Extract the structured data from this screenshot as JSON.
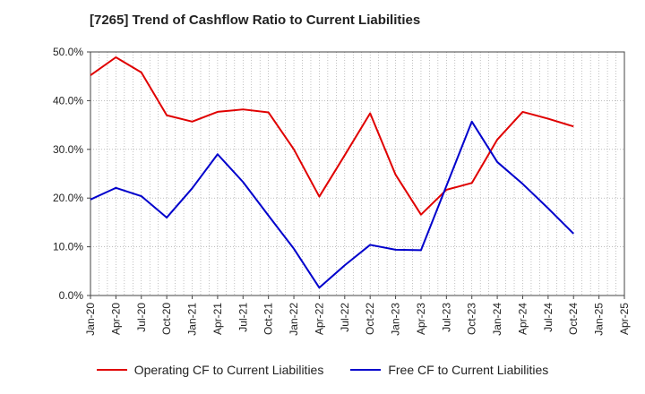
{
  "chart_data": {
    "type": "line",
    "title": "[7265]  Trend of Cashflow Ratio to Current Liabilities",
    "xlabel": "",
    "ylabel": "",
    "ylim": [
      0,
      50
    ],
    "yticks": [
      "0.0%",
      "10.0%",
      "20.0%",
      "30.0%",
      "40.0%",
      "50.0%"
    ],
    "x": [
      "Jan-20",
      "Apr-20",
      "Jul-20",
      "Oct-20",
      "Jan-21",
      "Apr-21",
      "Jul-21",
      "Oct-21",
      "Jan-22",
      "Apr-22",
      "Jul-22",
      "Oct-22",
      "Jan-23",
      "Apr-23",
      "Jul-23",
      "Oct-23",
      "Jan-24",
      "Apr-24",
      "Jul-24",
      "Oct-24",
      "Jan-25",
      "Apr-25"
    ],
    "grid": true,
    "legend_position": "bottom",
    "series": [
      {
        "name": "Operating CF to Current Liabilities",
        "color": "#e00000",
        "values": [
          45.2,
          48.9,
          45.8,
          37.0,
          35.7,
          37.7,
          38.2,
          37.6,
          30.0,
          20.3,
          28.8,
          37.4,
          24.8,
          16.6,
          21.7,
          23.1,
          32.0,
          37.7,
          36.3,
          34.7,
          null,
          null
        ]
      },
      {
        "name": "Free CF to Current Liabilities",
        "color": "#0000cc",
        "values": [
          19.7,
          22.1,
          20.4,
          16.0,
          22.0,
          29.0,
          23.3,
          16.4,
          9.6,
          1.6,
          6.2,
          10.4,
          9.4,
          9.3,
          22.5,
          35.7,
          27.4,
          22.9,
          17.9,
          12.7,
          null,
          null
        ]
      }
    ]
  }
}
